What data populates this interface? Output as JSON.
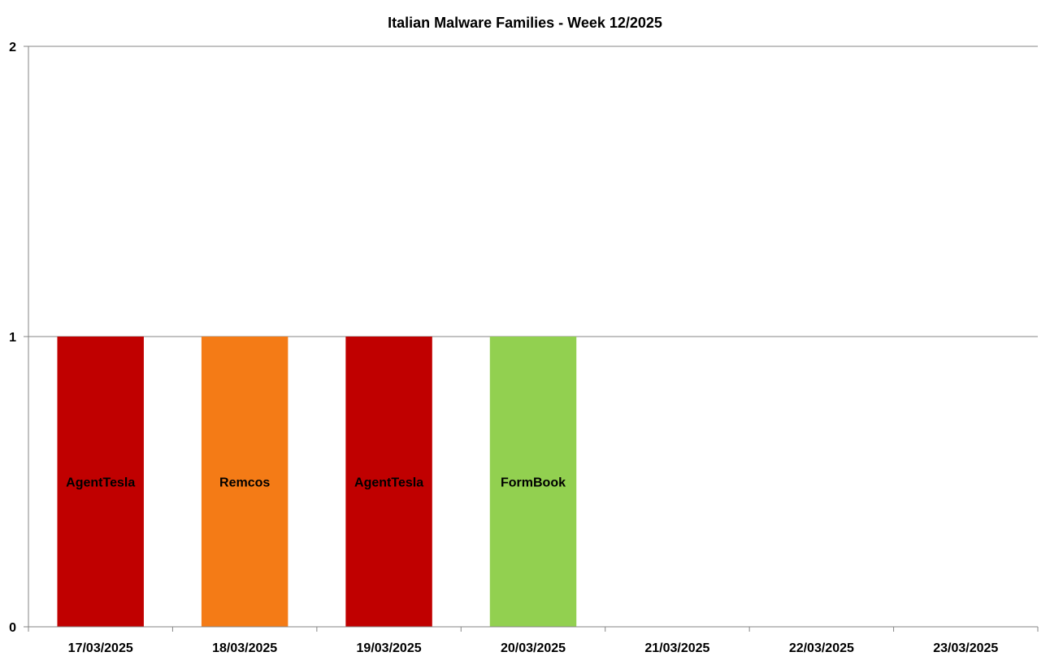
{
  "chart_data": {
    "type": "bar",
    "title": "Italian Malware Families - Week 12/2025",
    "xlabel": "",
    "ylabel": "",
    "ylim": [
      0,
      2
    ],
    "yticks": [
      "0",
      "1",
      "2"
    ],
    "grid": true,
    "categories": [
      "17/03/2025",
      "18/03/2025",
      "19/03/2025",
      "20/03/2025",
      "21/03/2025",
      "22/03/2025",
      "23/03/2025"
    ],
    "values": [
      1,
      1,
      1,
      1,
      0,
      0,
      0
    ],
    "bar_labels": [
      "AgentTesla",
      "Remcos",
      "AgentTesla",
      "FormBook",
      "",
      "",
      ""
    ],
    "colors": [
      "#c00000",
      "#f47b16",
      "#c00000",
      "#92d050",
      "",
      "",
      ""
    ]
  }
}
